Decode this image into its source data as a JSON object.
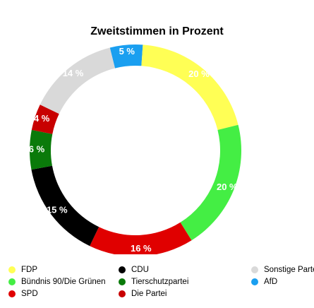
{
  "chart_data": {
    "type": "pie",
    "variant": "donut",
    "title": "Zweitstimmen in Prozent",
    "legend_position": "bottom",
    "slices": [
      {
        "name": "AfD",
        "value": 5,
        "label": "5 %",
        "color": "#1a9ff0"
      },
      {
        "name": "FDP",
        "value": 20,
        "label": "20 %",
        "color": "#ffff55"
      },
      {
        "name": "Bündnis 90/Die Grünen",
        "value": 20,
        "label": "20 %",
        "color": "#44ee44"
      },
      {
        "name": "SPD",
        "value": 16,
        "label": "16 %",
        "color": "#e00000"
      },
      {
        "name": "CDU",
        "value": 15,
        "label": "15 %",
        "color": "#000000"
      },
      {
        "name": "Tierschutzpartei",
        "value": 6,
        "label": "6 %",
        "color": "#0a7a0a"
      },
      {
        "name": "Die Partei",
        "value": 4,
        "label": "4 %",
        "color": "#c80000"
      },
      {
        "name": "Sonstige Parteien",
        "value": 14,
        "label": "14 %",
        "color": "#d9d9d9"
      }
    ],
    "legend": [
      {
        "name": "FDP",
        "color": "#ffff55"
      },
      {
        "name": "Bündnis 90/Die Grünen",
        "color": "#44ee44"
      },
      {
        "name": "SPD",
        "color": "#e00000"
      },
      {
        "name": "CDU",
        "color": "#000000"
      },
      {
        "name": "Tierschutzpartei",
        "color": "#0a7a0a"
      },
      {
        "name": "Die Partei",
        "color": "#c80000"
      },
      {
        "name": "Sonstige Parteien",
        "color": "#d9d9d9"
      },
      {
        "name": "AfD",
        "color": "#1a9ff0"
      }
    ]
  }
}
